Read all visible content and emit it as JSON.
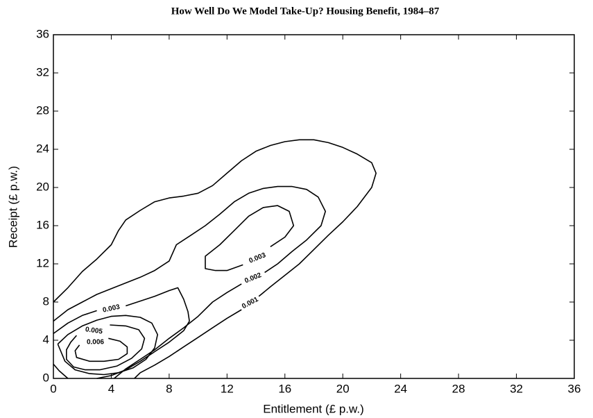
{
  "chart_data": {
    "type": "contour",
    "title": "How Well Do We Model Take-Up? Housing Benefit, 1984–87",
    "x_label": "Entitlement  (£ p.w.)",
    "y_label": "Receipt  (£ p.w.)",
    "xlim": [
      0,
      36
    ],
    "ylim": [
      0,
      36
    ],
    "xticks": [
      0,
      4,
      8,
      12,
      16,
      20,
      24,
      28,
      32,
      36
    ],
    "yticks": [
      0,
      4,
      8,
      12,
      16,
      20,
      24,
      28,
      32,
      36
    ],
    "color": "#000000",
    "contours": [
      {
        "level": 0.001,
        "x": [
          0,
          1,
          2,
          3,
          4,
          4.5,
          5,
          6,
          7,
          8,
          9,
          10,
          11,
          12,
          13,
          14,
          15,
          16,
          17,
          18,
          19,
          20,
          21,
          22,
          22.3,
          22,
          21,
          20,
          19,
          18,
          17,
          16,
          15,
          14.2,
          null,
          13,
          12,
          11,
          10,
          9,
          8,
          7,
          6,
          5.6
        ],
        "y": [
          8,
          9.5,
          11.2,
          12.5,
          14,
          15.5,
          16.6,
          17.6,
          18.5,
          18.9,
          19.1,
          19.4,
          20.2,
          21.5,
          22.8,
          23.8,
          24.4,
          24.8,
          25,
          25,
          24.7,
          24.2,
          23.5,
          22.6,
          21.5,
          20,
          18,
          16.4,
          15,
          13.5,
          12,
          10.8,
          9.6,
          8.6,
          null,
          7.2,
          6.3,
          5.3,
          4.3,
          3.3,
          2.3,
          1.4,
          0.6,
          0
        ]
      },
      {
        "level": 0.002,
        "x": [
          0,
          1,
          2,
          3,
          4,
          5,
          6,
          7,
          8,
          8.5,
          9.5,
          10.5,
          11.5,
          12.5,
          13.5,
          14.5,
          15.5,
          16.5,
          17.5,
          18.3,
          18.8,
          18.5,
          17.5,
          16.5,
          15.5,
          14.6,
          null,
          13,
          12,
          11,
          10,
          9,
          8,
          7,
          6,
          5,
          4.2
        ],
        "y": [
          6,
          7.2,
          8,
          8.8,
          9.4,
          10,
          10.6,
          11.3,
          12.3,
          14,
          15,
          16,
          17.2,
          18.5,
          19.4,
          19.9,
          20.1,
          20.1,
          19.8,
          19,
          17.5,
          16,
          14.5,
          13.3,
          12,
          11.1,
          null,
          9.9,
          9,
          8,
          6.5,
          5.3,
          4.2,
          3,
          2,
          1,
          0
        ]
      },
      {
        "level": 0.003,
        "x": [
          15,
          16,
          16.6,
          16.3,
          15.5,
          14.5,
          13.5,
          12.5,
          11.5,
          10.5,
          10.5,
          11.2,
          12,
          13.1,
          null,
          0,
          1,
          2,
          3,
          null,
          5,
          6,
          7,
          8,
          8.6,
          9,
          9.3,
          9.4,
          9,
          8,
          7,
          6,
          5,
          4,
          3
        ],
        "y": [
          13.8,
          14.8,
          16,
          17.5,
          18.1,
          17.9,
          17,
          15.5,
          14,
          12.8,
          11.5,
          11.3,
          11.3,
          11.9,
          null,
          4.7,
          5.8,
          6.6,
          7.1,
          null,
          7.6,
          8.1,
          8.6,
          9.2,
          9.5,
          8.3,
          7,
          6,
          5,
          3.8,
          2.8,
          1.8,
          0.9,
          0.3,
          0
        ]
      },
      {
        "x": [
          0.3,
          1,
          2,
          3,
          4,
          5,
          6,
          6.8,
          7.2,
          7,
          6.4,
          5.5,
          4.5,
          3.5,
          2.5,
          1.5,
          0.8,
          0.3
        ],
        "y": [
          3.6,
          4.6,
          5.5,
          6.1,
          6.5,
          6.6,
          6.4,
          5.8,
          4.6,
          3.2,
          2,
          1.1,
          0.6,
          0.4,
          0.5,
          0.9,
          1.8,
          3.6
        ]
      },
      {
        "level": 0.005,
        "x": [
          1.6,
          1.2,
          0.9,
          0.9,
          1.4,
          2.2,
          3.2,
          4.4,
          5.4,
          6.1,
          6.3,
          5.9,
          5,
          3.9
        ],
        "y": [
          4.5,
          3.8,
          3,
          2,
          1.2,
          0.9,
          0.9,
          1.3,
          2.1,
          3.1,
          4.2,
          5.1,
          5.5,
          5.6
        ]
      },
      {
        "level": 0.006,
        "x": [
          3.8,
          4.6,
          5.1,
          5.1,
          4.5,
          3.5,
          2.5,
          1.6,
          1.5,
          1.8
        ],
        "y": [
          4.2,
          3.9,
          3.3,
          2.6,
          2,
          1.8,
          1.8,
          2.2,
          2.9,
          3.5
        ]
      },
      {
        "x": [
          0,
          0.4,
          1
        ],
        "y": [
          1.5,
          0.8,
          0
        ]
      }
    ]
  }
}
